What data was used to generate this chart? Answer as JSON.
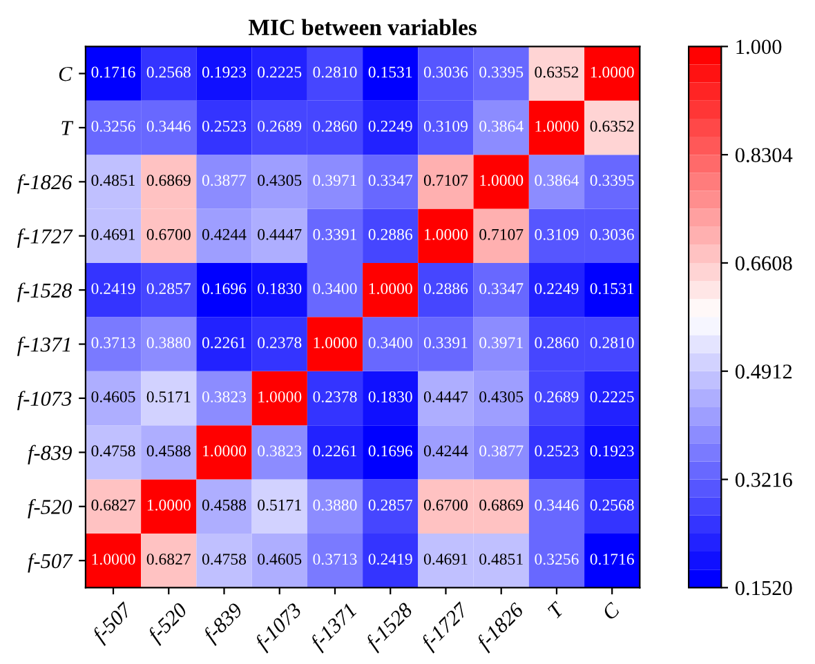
{
  "chart_data": {
    "type": "heatmap",
    "title": "MIC between variables",
    "categories": [
      "f-507",
      "f-520",
      "f-839",
      "f-1073",
      "f-1371",
      "f-1528",
      "f-1727",
      "f-1826",
      "T",
      "C"
    ],
    "y_categories": [
      "C",
      "T",
      "f-1826",
      "f-1727",
      "f-1528",
      "f-1371",
      "f-1073",
      "f-839",
      "f-520",
      "f-507"
    ],
    "cells": [
      [
        0.1716,
        0.2568,
        0.1923,
        0.2225,
        0.281,
        0.1531,
        0.3036,
        0.3395,
        0.6352,
        1.0
      ],
      [
        0.3256,
        0.3446,
        0.2523,
        0.2689,
        0.286,
        0.2249,
        0.3109,
        0.3864,
        1.0,
        0.6352
      ],
      [
        0.4851,
        0.6869,
        0.3877,
        0.4305,
        0.3971,
        0.3347,
        0.7107,
        1.0,
        0.3864,
        0.3395
      ],
      [
        0.4691,
        0.67,
        0.4244,
        0.4447,
        0.3391,
        0.2886,
        1.0,
        0.7107,
        0.3109,
        0.3036
      ],
      [
        0.2419,
        0.2857,
        0.1696,
        0.183,
        0.34,
        1.0,
        0.2886,
        0.3347,
        0.2249,
        0.1531
      ],
      [
        0.3713,
        0.388,
        0.2261,
        0.2378,
        1.0,
        0.34,
        0.3391,
        0.3971,
        0.286,
        0.281
      ],
      [
        0.4605,
        0.5171,
        0.3823,
        1.0,
        0.2378,
        0.183,
        0.4447,
        0.4305,
        0.2689,
        0.2225
      ],
      [
        0.4758,
        0.4588,
        1.0,
        0.3823,
        0.2261,
        0.1696,
        0.4244,
        0.3877,
        0.2523,
        0.1923
      ],
      [
        0.6827,
        1.0,
        0.4588,
        0.5171,
        0.388,
        0.2857,
        0.67,
        0.6869,
        0.3446,
        0.2568
      ],
      [
        1.0,
        0.6827,
        0.4758,
        0.4605,
        0.3713,
        0.2419,
        0.4691,
        0.4851,
        0.3256,
        0.1716
      ]
    ],
    "cell_labels": [
      [
        "0.1716",
        "0.2568",
        "0.1923",
        "0.2225",
        "0.2810",
        "0.1531",
        "0.3036",
        "0.3395",
        "0.6352",
        "1.0000"
      ],
      [
        "0.3256",
        "0.3446",
        "0.2523",
        "0.2689",
        "0.2860",
        "0.2249",
        "0.3109",
        "0.3864",
        "1.0000",
        "0.6352"
      ],
      [
        "0.4851",
        "0.6869",
        "0.3877",
        "0.4305",
        "0.3971",
        "0.3347",
        "0.7107",
        "1.0000",
        "0.3864",
        "0.3395"
      ],
      [
        "0.4691",
        "0.6700",
        "0.4244",
        "0.4447",
        "0.3391",
        "0.2886",
        "1.0000",
        "0.7107",
        "0.3109",
        "0.3036"
      ],
      [
        "0.2419",
        "0.2857",
        "0.1696",
        "0.1830",
        "0.3400",
        "1.0000",
        "0.2886",
        "0.3347",
        "0.2249",
        "0.1531"
      ],
      [
        "0.3713",
        "0.3880",
        "0.2261",
        "0.2378",
        "1.0000",
        "0.3400",
        "0.3391",
        "0.3971",
        "0.2860",
        "0.2810"
      ],
      [
        "0.4605",
        "0.5171",
        "0.3823",
        "1.0000",
        "0.2378",
        "0.1830",
        "0.4447",
        "0.4305",
        "0.2689",
        "0.2225"
      ],
      [
        "0.4758",
        "0.4588",
        "1.0000",
        "0.3823",
        "0.2261",
        "0.1696",
        "0.4244",
        "0.3877",
        "0.2523",
        "0.1923"
      ],
      [
        "0.6827",
        "1.0000",
        "0.4588",
        "0.5171",
        "0.3880",
        "0.2857",
        "0.6700",
        "0.6869",
        "0.3446",
        "0.2568"
      ],
      [
        "1.0000",
        "0.6827",
        "0.4758",
        "0.4605",
        "0.3713",
        "0.2419",
        "0.4691",
        "0.4851",
        "0.3256",
        "0.1716"
      ]
    ],
    "clim": [
      0.152,
      1.0
    ],
    "cticks": [
      {
        "value": 0.152,
        "label": "0.1520"
      },
      {
        "value": 0.3216,
        "label": "0.3216"
      },
      {
        "value": 0.4912,
        "label": "0.4912"
      },
      {
        "value": 0.6608,
        "label": "0.6608"
      },
      {
        "value": 0.8304,
        "label": "0.8304"
      },
      {
        "value": 1.0,
        "label": "1.000"
      }
    ]
  }
}
